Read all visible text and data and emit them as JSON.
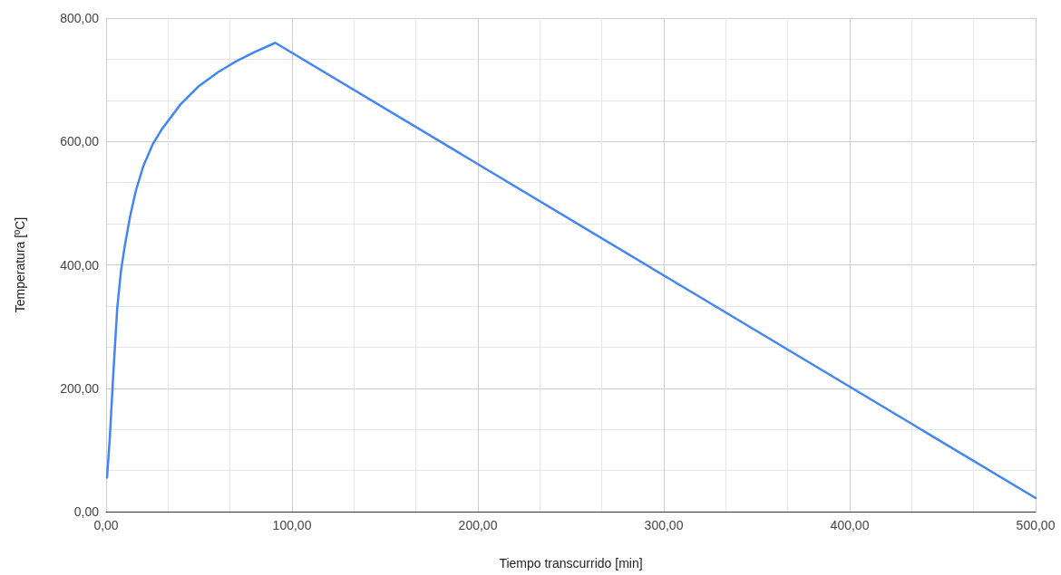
{
  "chart_data": {
    "type": "line",
    "xlabel": "Tiempo transcurrido [min]",
    "ylabel": "Temperatura [ºC]",
    "x": [
      0.5,
      2,
      4,
      6,
      8,
      10,
      13,
      16,
      20,
      25,
      30,
      35,
      40,
      50,
      60,
      70,
      80,
      91,
      500
    ],
    "series": [
      {
        "color": "#4285f4",
        "values": [
          55,
          120,
          230,
          330,
          390,
          430,
          480,
          520,
          560,
          595,
          620,
          640,
          660,
          690,
          712,
          730,
          745,
          760,
          22
        ]
      }
    ],
    "xlim": [
      0,
      500
    ],
    "xticks": [
      {
        "value": 0,
        "label": "0,00"
      },
      {
        "value": 100,
        "label": "100,00"
      },
      {
        "value": 200,
        "label": "200,00"
      },
      {
        "value": 300,
        "label": "300,00"
      },
      {
        "value": 400,
        "label": "400,00"
      },
      {
        "value": 500,
        "label": "500,00"
      }
    ],
    "ylim": [
      0,
      800
    ],
    "yticks": [
      {
        "value": 0,
        "label": "0,00"
      },
      {
        "value": 200,
        "label": "200,00"
      },
      {
        "value": 400,
        "label": "400,00"
      },
      {
        "value": 600,
        "label": "600,00"
      },
      {
        "value": 800,
        "label": "800,00"
      }
    ],
    "grid": true,
    "marker": "none",
    "line_style": "solid"
  }
}
